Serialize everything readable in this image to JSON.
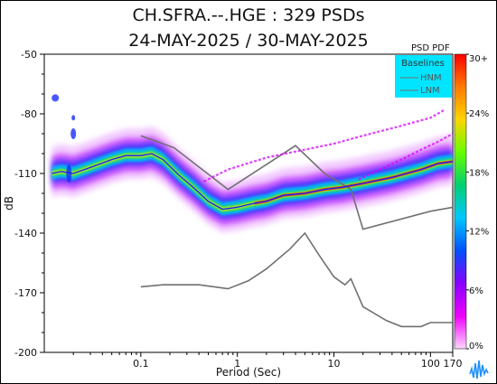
{
  "chart_data": {
    "type": "heatmap",
    "title": "CH.SFRA.--.HGE : 329 PSDs",
    "subtitle": "24-MAY-2025 / 30-MAY-2025",
    "xlabel": "Period (Sec)",
    "ylabel": "dB",
    "x_scale": "log",
    "xlim": [
      0.01,
      170
    ],
    "ylim": [
      -200,
      -50
    ],
    "x_ticks": [
      0.1,
      1,
      10,
      100,
      170
    ],
    "x_tick_labels": [
      "0.1",
      "1",
      "10",
      "100",
      "170"
    ],
    "y_ticks": [
      -50,
      -80,
      -110,
      -140,
      -170,
      -200
    ],
    "y_tick_labels": [
      "-50",
      "-80",
      "-110",
      "-140",
      "-170",
      "-200"
    ],
    "grid": false,
    "legend": {
      "title": "Baselines",
      "entries": [
        "HNM",
        "LNM"
      ],
      "placement": "top-right",
      "background": "#00e5ff"
    },
    "colorbar": {
      "title": "PSD PDF",
      "ticks": [
        "30+",
        "24%",
        "18%",
        "12%",
        "6%",
        "0%"
      ],
      "colors": [
        "#ff0000",
        "#ff7a00",
        "#ffd400",
        "#66ff00",
        "#00d070",
        "#00c8ff",
        "#0050ff",
        "#8800ff",
        "#ee00ff",
        "#ffd6ff"
      ]
    },
    "series": [
      {
        "name": "HNM",
        "color": "#707070",
        "x": [
          0.1,
          0.22,
          0.8,
          4,
          8,
          15,
          20,
          100,
          170
        ],
        "y": [
          -91,
          -97,
          -118,
          -96,
          -110,
          -118,
          -138,
          -129,
          -127
        ]
      },
      {
        "name": "LNM",
        "color": "#707070",
        "x": [
          0.1,
          0.17,
          0.4,
          0.8,
          1.3,
          2,
          3.5,
          5,
          7,
          10,
          13,
          15,
          20,
          35,
          50,
          80,
          100,
          170
        ],
        "y": [
          -167,
          -166,
          -166,
          -168,
          -164,
          -158,
          -148,
          -140,
          -151,
          -162,
          -166,
          -163,
          -177,
          -184,
          -187,
          -187,
          -185,
          -185
        ]
      },
      {
        "name": "",
        "color": "#d500ff",
        "x": [
          0.45,
          0.8,
          2,
          5,
          10,
          20,
          50,
          100,
          140
        ],
        "y": [
          -114,
          -108,
          -102,
          -98,
          -95,
          -91,
          -86,
          -82,
          -78
        ]
      },
      {
        "name": "",
        "color": "#d500ff",
        "x": [
          18,
          30,
          50,
          80,
          120,
          170
        ],
        "y": [
          -113,
          -108,
          -103,
          -98,
          -94,
          -90
        ]
      },
      {
        "name": "",
        "color": "#0022ff",
        "x": [
          0.012,
          0.015,
          0.02,
          0.03,
          0.05,
          0.07,
          0.1,
          0.13,
          0.17,
          0.25,
          0.35,
          0.5,
          0.7,
          1,
          1.5,
          2,
          3,
          5,
          8,
          12,
          20,
          40,
          80,
          120,
          170
        ],
        "y": [
          -110,
          -109,
          -110,
          -107,
          -103,
          -101,
          -101,
          -100,
          -103,
          -111,
          -117,
          -124,
          -128,
          -127,
          -125,
          -124,
          -121,
          -120,
          -118,
          -117,
          -115,
          -112,
          -108,
          -105,
          -104
        ]
      }
    ]
  }
}
